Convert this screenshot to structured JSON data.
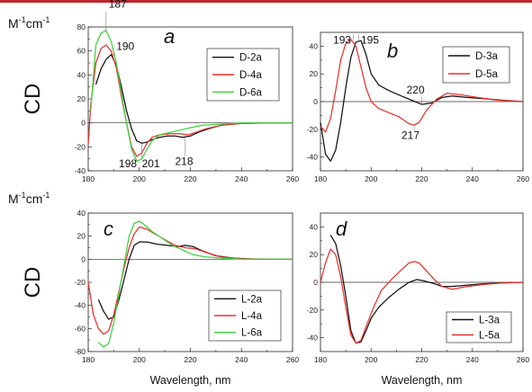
{
  "figure": {
    "y_unit": "M-1cm-1",
    "y_label": "CD",
    "x_label": "Wavelength, nm"
  },
  "chart_data": [
    {
      "id": "a",
      "type": "line",
      "panel_label": "a",
      "xlim": [
        180,
        260
      ],
      "ylim": [
        -40,
        80
      ],
      "xticks": [
        180,
        200,
        220,
        240,
        260
      ],
      "yticks": [
        -40,
        -20,
        0,
        20,
        40,
        60,
        80
      ],
      "show_unit": true,
      "show_cd": true,
      "show_xlabel": false,
      "legend_position": "top-right",
      "series": [
        {
          "name": "D-2a",
          "color": "#111111",
          "points": [
            [
              183,
              32
            ],
            [
              185,
              45
            ],
            [
              187,
              53
            ],
            [
              189,
              57
            ],
            [
              191,
              48
            ],
            [
              193,
              30
            ],
            [
              195,
              10
            ],
            [
              197,
              -5
            ],
            [
              199,
              -15
            ],
            [
              201,
              -17
            ],
            [
              203,
              -16
            ],
            [
              205,
              -14
            ],
            [
              208,
              -12
            ],
            [
              211,
              -11
            ],
            [
              214,
              -11
            ],
            [
              217,
              -12
            ],
            [
              220,
              -11
            ],
            [
              223,
              -8
            ],
            [
              227,
              -5
            ],
            [
              232,
              -2
            ],
            [
              240,
              -0.5
            ],
            [
              250,
              0
            ],
            [
              260,
              0
            ]
          ]
        },
        {
          "name": "D-4a",
          "color": "#e8302a",
          "points": [
            [
              180,
              -18
            ],
            [
              181,
              15
            ],
            [
              183,
              50
            ],
            [
              185,
              62
            ],
            [
              187,
              65
            ],
            [
              189,
              60
            ],
            [
              191,
              46
            ],
            [
              193,
              22
            ],
            [
              195,
              0
            ],
            [
              197,
              -20
            ],
            [
              199,
              -28
            ],
            [
              201,
              -25
            ],
            [
              203,
              -17
            ],
            [
              205,
              -12
            ],
            [
              208,
              -10
            ],
            [
              212,
              -9
            ],
            [
              216,
              -9
            ],
            [
              219,
              -10
            ],
            [
              222,
              -8
            ],
            [
              226,
              -5
            ],
            [
              232,
              -2
            ],
            [
              240,
              -0.5
            ],
            [
              250,
              0
            ],
            [
              260,
              0
            ]
          ]
        },
        {
          "name": "D-6a",
          "color": "#3cd23c",
          "points": [
            [
              181,
              10
            ],
            [
              183,
              65
            ],
            [
              185,
              75
            ],
            [
              187,
              77
            ],
            [
              189,
              68
            ],
            [
              191,
              50
            ],
            [
              193,
              25
            ],
            [
              195,
              0
            ],
            [
              197,
              -22
            ],
            [
              199,
              -32
            ],
            [
              201,
              -30
            ],
            [
              203,
              -22
            ],
            [
              205,
              -15
            ],
            [
              208,
              -10
            ],
            [
              212,
              -8
            ],
            [
              216,
              -6
            ],
            [
              220,
              -4
            ],
            [
              225,
              -2
            ],
            [
              232,
              -1
            ],
            [
              240,
              0
            ],
            [
              250,
              0
            ],
            [
              260,
              0
            ]
          ]
        }
      ],
      "annotations": [
        {
          "text": "187",
          "x": 187,
          "y": 77,
          "tx": 188,
          "ty": 96
        },
        {
          "text": "190",
          "x": 190,
          "y": 56,
          "tx": 191,
          "ty": 61
        },
        {
          "text": "198",
          "x": 198,
          "y": -30,
          "tx": 192,
          "ty": -37
        },
        {
          "text": "201",
          "x": 201,
          "y": -17,
          "tx": 201,
          "ty": -37
        },
        {
          "text": "218",
          "x": 218,
          "y": -12,
          "tx": 214,
          "ty": -35
        }
      ]
    },
    {
      "id": "b",
      "type": "line",
      "panel_label": "b",
      "xlim": [
        180,
        260
      ],
      "ylim": [
        -50,
        50
      ],
      "xticks": [
        180,
        200,
        220,
        240,
        260
      ],
      "yticks": [
        -40,
        -20,
        0,
        20,
        40
      ],
      "show_unit": false,
      "show_cd": false,
      "show_xlabel": false,
      "legend_position": "top-right",
      "series": [
        {
          "name": "D-3a",
          "color": "#111111",
          "points": [
            [
              180,
              -15
            ],
            [
              182,
              -38
            ],
            [
              184,
              -43
            ],
            [
              186,
              -35
            ],
            [
              188,
              -15
            ],
            [
              190,
              10
            ],
            [
              192,
              32
            ],
            [
              194,
              43
            ],
            [
              196,
              44
            ],
            [
              198,
              34
            ],
            [
              200,
              20
            ],
            [
              203,
              12
            ],
            [
              207,
              8
            ],
            [
              212,
              4
            ],
            [
              216,
              1
            ],
            [
              220,
              -2
            ],
            [
              224,
              -1
            ],
            [
              228,
              3
            ],
            [
              232,
              4
            ],
            [
              238,
              3
            ],
            [
              245,
              2
            ],
            [
              252,
              1
            ],
            [
              260,
              0
            ]
          ]
        },
        {
          "name": "D-5a",
          "color": "#e8302a",
          "points": [
            [
              180,
              -18
            ],
            [
              182,
              -22
            ],
            [
              184,
              -12
            ],
            [
              186,
              8
            ],
            [
              188,
              30
            ],
            [
              190,
              42
            ],
            [
              192,
              45
            ],
            [
              194,
              40
            ],
            [
              196,
              25
            ],
            [
              198,
              10
            ],
            [
              200,
              0
            ],
            [
              203,
              -5
            ],
            [
              207,
              -8
            ],
            [
              211,
              -11
            ],
            [
              215,
              -16
            ],
            [
              217,
              -17
            ],
            [
              219,
              -15
            ],
            [
              222,
              -6
            ],
            [
              226,
              2
            ],
            [
              230,
              6
            ],
            [
              235,
              5
            ],
            [
              242,
              3
            ],
            [
              250,
              1
            ],
            [
              260,
              0
            ]
          ]
        }
      ],
      "annotations": [
        {
          "text": "193",
          "x": 193,
          "y": 45,
          "tx": 185,
          "ty": 42
        },
        {
          "text": "195",
          "x": 195,
          "y": 44,
          "tx": 196,
          "ty": 42
        },
        {
          "text": "220",
          "x": 220,
          "y": -2,
          "tx": 214,
          "ty": 6
        },
        {
          "text": "217",
          "x": 217,
          "y": -17,
          "tx": 212,
          "ty": -27
        }
      ]
    },
    {
      "id": "c",
      "type": "line",
      "panel_label": "c",
      "xlim": [
        180,
        260
      ],
      "ylim": [
        -80,
        40
      ],
      "xticks": [
        180,
        200,
        220,
        240,
        260
      ],
      "yticks": [
        -80,
        -60,
        -40,
        -20,
        0,
        20,
        40
      ],
      "show_unit": true,
      "show_cd": true,
      "show_xlabel": true,
      "legend_position": "bottom-right",
      "series": [
        {
          "name": "L-2a",
          "color": "#111111",
          "points": [
            [
              184,
              -35
            ],
            [
              186,
              -45
            ],
            [
              188,
              -52
            ],
            [
              190,
              -50
            ],
            [
              192,
              -35
            ],
            [
              194,
              -18
            ],
            [
              196,
              0
            ],
            [
              198,
              12
            ],
            [
              200,
              15
            ],
            [
              203,
              15
            ],
            [
              207,
              13
            ],
            [
              211,
              12
            ],
            [
              215,
              11
            ],
            [
              218,
              12
            ],
            [
              221,
              11
            ],
            [
              225,
              7
            ],
            [
              230,
              3
            ],
            [
              237,
              1
            ],
            [
              245,
              0
            ],
            [
              260,
              0
            ]
          ]
        },
        {
          "name": "L-4a",
          "color": "#e8302a",
          "points": [
            [
              180,
              -20
            ],
            [
              182,
              -48
            ],
            [
              184,
              -60
            ],
            [
              186,
              -65
            ],
            [
              188,
              -62
            ],
            [
              190,
              -48
            ],
            [
              192,
              -28
            ],
            [
              194,
              -8
            ],
            [
              196,
              10
            ],
            [
              198,
              22
            ],
            [
              200,
              28
            ],
            [
              203,
              26
            ],
            [
              206,
              22
            ],
            [
              210,
              17
            ],
            [
              214,
              12
            ],
            [
              218,
              10
            ],
            [
              222,
              9
            ],
            [
              226,
              6
            ],
            [
              232,
              2
            ],
            [
              240,
              0.5
            ],
            [
              250,
              0
            ],
            [
              260,
              0
            ]
          ]
        },
        {
          "name": "L-6a",
          "color": "#3cd23c",
          "points": [
            [
              184,
              -72
            ],
            [
              186,
              -76
            ],
            [
              188,
              -73
            ],
            [
              190,
              -55
            ],
            [
              192,
              -30
            ],
            [
              194,
              -5
            ],
            [
              196,
              20
            ],
            [
              198,
              31
            ],
            [
              200,
              33
            ],
            [
              202,
              30
            ],
            [
              205,
              24
            ],
            [
              209,
              18
            ],
            [
              213,
              12
            ],
            [
              217,
              8
            ],
            [
              221,
              4
            ],
            [
              226,
              2
            ],
            [
              232,
              1
            ],
            [
              240,
              0
            ],
            [
              260,
              0
            ]
          ]
        }
      ],
      "annotations": []
    },
    {
      "id": "d",
      "type": "line",
      "panel_label": "d",
      "xlim": [
        180,
        260
      ],
      "ylim": [
        -50,
        50
      ],
      "xticks": [
        180,
        200,
        220,
        240,
        260
      ],
      "yticks": [
        -40,
        -20,
        0,
        20,
        40
      ],
      "show_unit": false,
      "show_cd": false,
      "show_xlabel": true,
      "legend_position": "bottom-right",
      "series": [
        {
          "name": "L-3a",
          "color": "#111111",
          "points": [
            [
              184,
              34
            ],
            [
              186,
              28
            ],
            [
              188,
              12
            ],
            [
              190,
              -10
            ],
            [
              192,
              -35
            ],
            [
              194,
              -44
            ],
            [
              196,
              -43
            ],
            [
              198,
              -35
            ],
            [
              200,
              -26
            ],
            [
              203,
              -18
            ],
            [
              207,
              -11
            ],
            [
              211,
              -5
            ],
            [
              215,
              0
            ],
            [
              218,
              2
            ],
            [
              221,
              1
            ],
            [
              225,
              -1
            ],
            [
              228,
              -3
            ],
            [
              232,
              -3
            ],
            [
              238,
              -2
            ],
            [
              245,
              -1
            ],
            [
              252,
              -0.5
            ],
            [
              260,
              0
            ]
          ]
        },
        {
          "name": "L-5a",
          "color": "#e8302a",
          "points": [
            [
              180,
              0
            ],
            [
              182,
              14
            ],
            [
              184,
              24
            ],
            [
              186,
              20
            ],
            [
              188,
              4
            ],
            [
              190,
              -18
            ],
            [
              192,
              -38
            ],
            [
              194,
              -44
            ],
            [
              196,
              -42
            ],
            [
              198,
              -32
            ],
            [
              201,
              -18
            ],
            [
              204,
              -6
            ],
            [
              208,
              2
            ],
            [
              212,
              9
            ],
            [
              215,
              14
            ],
            [
              217,
              15
            ],
            [
              219,
              14
            ],
            [
              222,
              8
            ],
            [
              225,
              2
            ],
            [
              228,
              -3
            ],
            [
              232,
              -5
            ],
            [
              238,
              -3
            ],
            [
              245,
              -1.5
            ],
            [
              252,
              -0.5
            ],
            [
              260,
              0
            ]
          ]
        }
      ],
      "annotations": []
    }
  ]
}
